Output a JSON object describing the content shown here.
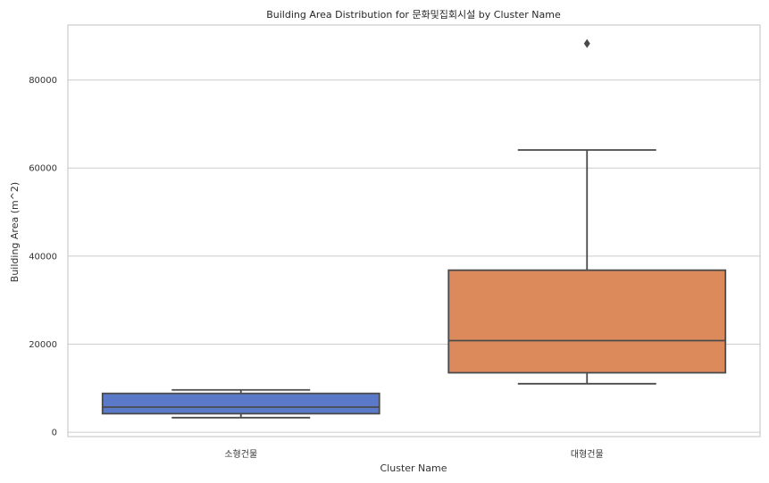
{
  "chart_data": {
    "type": "box",
    "title": "Building Area Distribution for 문화및집회시설 by Cluster Name",
    "xlabel": "Cluster Name",
    "ylabel": "Building Area (m^2)",
    "ylim": [
      -1000,
      92500
    ],
    "yticks": [
      0,
      20000,
      40000,
      60000,
      80000
    ],
    "grid": true,
    "categories": [
      "소형건물",
      "대형건물"
    ],
    "boxes": [
      {
        "category": "소형건물",
        "color": "#5a7ac9",
        "whisker_low": 3300,
        "q1": 4200,
        "median": 5700,
        "q3": 8800,
        "whisker_high": 9600,
        "outliers": []
      },
      {
        "category": "대형건물",
        "color": "#dc8a5c",
        "whisker_low": 11000,
        "q1": 13500,
        "median": 20800,
        "q3": 36800,
        "whisker_high": 64100,
        "outliers": [
          88300
        ]
      }
    ]
  }
}
